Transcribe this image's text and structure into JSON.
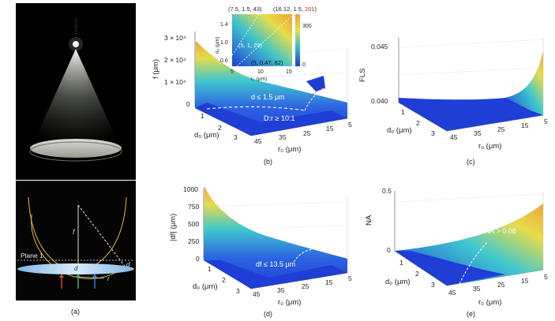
{
  "captions": {
    "a": "(a)",
    "b": "(b)",
    "c": "(c)",
    "d": "(d)",
    "e": "(e)"
  },
  "panel_a": {
    "plane_label": "Plane 1",
    "f_symbol": "f",
    "r_symbol": "r",
    "d0_symbol": "d",
    "df_symbol": "d",
    "d0_sub": "0",
    "df_sub": "f"
  },
  "panel_b": {
    "z_label": "f (μm)",
    "z_ticks": [
      "3 × 10⁴",
      "2 × 10⁴",
      "1 × 10⁴",
      "0"
    ],
    "d0_label": "d₀ (μm)",
    "d0_ticks": [
      "1",
      "2",
      "3"
    ],
    "r0_label": "r₀ (μm)",
    "r0_ticks": [
      "45",
      "35",
      "25",
      "15",
      "5"
    ],
    "ann_d": "d ≤ 1.5 μm",
    "ann_D": "D:r ≥ 10:1",
    "inset": {
      "corner_tl": "(7.5, 1.5, 43)",
      "corner_tr_a": "(16.12, 1.5, ",
      "corner_tr_b": "201",
      "corner_tr_c": ")",
      "mid": "(5, 1, 29)",
      "bottom": "(5, 0.47, 82)",
      "y_label": "d₀ (μm)",
      "y_ticks": [
        "1.4",
        "1.0",
        "0.6"
      ],
      "x_label": "r₀ (μm)",
      "x_ticks": [
        "5",
        "10",
        "15"
      ],
      "cb_ticks": [
        "300",
        "0"
      ],
      "colors": {
        "low": "#2343d6",
        "mid": "#3fc0c8",
        "high": "#f2a030"
      }
    }
  },
  "panel_c": {
    "z_label": "FLS",
    "z_ticks": [
      "0.045",
      "0.040"
    ],
    "d0_label": "d₀ (μm)",
    "d0_ticks": [
      "1",
      "2",
      "3"
    ],
    "r0_label": "r₀ (μm)",
    "r0_ticks": [
      "45",
      "35",
      "25",
      "15",
      "5"
    ]
  },
  "panel_d": {
    "z_label": "|df| (μm)",
    "z_ticks": [
      "1000",
      "750",
      "500",
      "250",
      "0"
    ],
    "d0_label": "d₀ (μm)",
    "d0_ticks": [
      "1",
      "2",
      "3"
    ],
    "r0_label": "r₀ (μm)",
    "r0_ticks": [
      "45",
      "35",
      "25",
      "15",
      "5"
    ],
    "ann": "df ≤ 13.5 μm"
  },
  "panel_e": {
    "z_label": "NA",
    "z_ticks": [
      "0.5",
      "0"
    ],
    "d0_label": "d₀ (μm)",
    "d0_ticks": [
      "1",
      "2",
      "3"
    ],
    "r0_label": "r₀ (μm)",
    "r0_ticks": [
      "45",
      "35",
      "25",
      "15",
      "5"
    ],
    "ann": "NA > 0.08"
  },
  "colors": {
    "surface_blue": "#1f3ed6",
    "surface_cyan": "#3cc9d0",
    "surface_yellow": "#e7dc49",
    "surface_orange": "#f3a33a",
    "arrow_red": "#e0452b",
    "arrow_green": "#3dbb5a",
    "arrow_blue": "#3a7ee6",
    "ring": "#e7b43f"
  }
}
